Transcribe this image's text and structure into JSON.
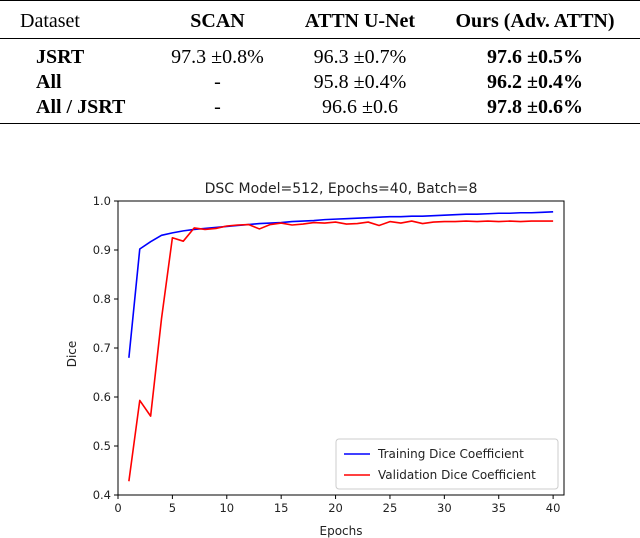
{
  "table": {
    "headers": [
      "Dataset",
      "SCAN",
      "ATTN U-Net",
      "Ours (Adv. ATTN)"
    ],
    "rows": [
      {
        "dataset": "JSRT",
        "scan": "97.3 ±0.8%",
        "unet": "96.3 ±0.7%",
        "ours": "97.6 ±0.5%"
      },
      {
        "dataset": "All",
        "scan": "-",
        "unet": "95.8 ±0.4%",
        "ours": "96.2 ±0.4%"
      },
      {
        "dataset": "All / JSRT",
        "scan": "-",
        "unet": "96.6 ±0.6",
        "ours": "97.8 ±0.6%"
      }
    ]
  },
  "chart_data": {
    "type": "line",
    "title": "DSC Model=512, Epochs=40, Batch=8",
    "xlabel": "Epochs",
    "ylabel": "Dice",
    "xlim": [
      0,
      41
    ],
    "ylim": [
      0.4,
      1.0
    ],
    "xticks": [
      0,
      5,
      10,
      15,
      20,
      25,
      30,
      35,
      40
    ],
    "yticks": [
      0.4,
      0.5,
      0.6,
      0.7,
      0.8,
      0.9,
      1.0
    ],
    "legend_position": "lower right",
    "series": [
      {
        "name": "Training Dice Coefficient",
        "color": "#0000ff",
        "x": [
          1,
          2,
          3,
          4,
          5,
          6,
          7,
          8,
          9,
          10,
          11,
          12,
          13,
          14,
          15,
          16,
          17,
          18,
          19,
          20,
          21,
          22,
          23,
          24,
          25,
          26,
          27,
          28,
          29,
          30,
          31,
          32,
          33,
          34,
          35,
          36,
          37,
          38,
          39,
          40
        ],
        "y": [
          0.68,
          0.902,
          0.917,
          0.93,
          0.935,
          0.939,
          0.942,
          0.944,
          0.946,
          0.948,
          0.95,
          0.952,
          0.954,
          0.955,
          0.956,
          0.958,
          0.959,
          0.96,
          0.962,
          0.963,
          0.964,
          0.965,
          0.966,
          0.967,
          0.968,
          0.968,
          0.969,
          0.969,
          0.97,
          0.971,
          0.972,
          0.973,
          0.973,
          0.974,
          0.975,
          0.975,
          0.976,
          0.976,
          0.977,
          0.978
        ]
      },
      {
        "name": "Validation Dice Coefficient",
        "color": "#ff0000",
        "x": [
          1,
          2,
          3,
          4,
          5,
          6,
          7,
          8,
          9,
          10,
          11,
          12,
          13,
          14,
          15,
          16,
          17,
          18,
          19,
          20,
          21,
          22,
          23,
          24,
          25,
          26,
          27,
          28,
          29,
          30,
          31,
          32,
          33,
          34,
          35,
          36,
          37,
          38,
          39,
          40
        ],
        "y": [
          0.428,
          0.593,
          0.561,
          0.76,
          0.925,
          0.918,
          0.945,
          0.942,
          0.944,
          0.949,
          0.951,
          0.952,
          0.943,
          0.952,
          0.955,
          0.951,
          0.953,
          0.956,
          0.955,
          0.957,
          0.953,
          0.954,
          0.957,
          0.95,
          0.958,
          0.955,
          0.959,
          0.954,
          0.957,
          0.958,
          0.958,
          0.959,
          0.958,
          0.959,
          0.958,
          0.959,
          0.958,
          0.959,
          0.959,
          0.959
        ]
      }
    ]
  }
}
